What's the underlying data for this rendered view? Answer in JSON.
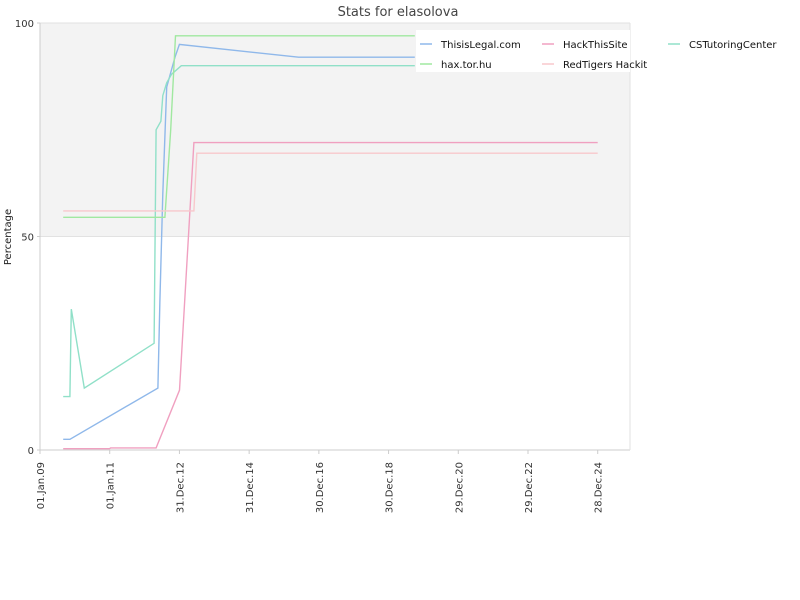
{
  "chart_data": {
    "type": "line",
    "title": "Stats for elasolova",
    "xlabel": "",
    "ylabel": "Percentage",
    "ylim": [
      0,
      100
    ],
    "xlim": [
      "2009-01-01",
      "2025-12-01"
    ],
    "yticks": [
      0,
      50,
      100
    ],
    "xticks": [
      {
        "label": "01.Jan.09",
        "date": "2009-01-01"
      },
      {
        "label": "01.Jan.11",
        "date": "2011-01-01"
      },
      {
        "label": "31.Dec.12",
        "date": "2012-12-31"
      },
      {
        "label": "31.Dec.14",
        "date": "2014-12-31"
      },
      {
        "label": "30.Dec.16",
        "date": "2016-12-30"
      },
      {
        "label": "30.Dec.18",
        "date": "2018-12-30"
      },
      {
        "label": "29.Dec.20",
        "date": "2020-12-29"
      },
      {
        "label": "29.Dec.22",
        "date": "2022-12-29"
      },
      {
        "label": "28.Dec.24",
        "date": "2024-12-28"
      }
    ],
    "shaded_band": [
      50,
      100
    ],
    "legend_position": "top-right",
    "series": [
      {
        "name": "ThisisLegal.com",
        "color": "#8fb8ea",
        "points": [
          [
            "2009-09-01",
            2.5
          ],
          [
            "2009-11-10",
            2.5
          ],
          [
            "2012-05-20",
            14.5
          ],
          [
            "2012-06-10",
            35
          ],
          [
            "2012-07-10",
            60
          ],
          [
            "2012-08-20",
            85
          ],
          [
            "2012-11-15",
            92
          ],
          [
            "2012-12-31",
            95
          ],
          [
            "2016-06-01",
            92
          ],
          [
            "2019-10-01",
            92
          ]
        ]
      },
      {
        "name": "HackThisSite",
        "color": "#f0a0c0",
        "points": [
          [
            "2009-09-01",
            0.3
          ],
          [
            "2010-12-31",
            0.3
          ],
          [
            "2011-01-10",
            0.5
          ],
          [
            "2012-05-01",
            0.5
          ],
          [
            "2013-01-01",
            14
          ],
          [
            "2013-06-01",
            72
          ],
          [
            "2024-12-28",
            72
          ]
        ]
      },
      {
        "name": "CSTutoringCenter",
        "color": "#90e0c8",
        "points": [
          [
            "2009-09-01",
            12.5
          ],
          [
            "2009-11-10",
            12.5
          ],
          [
            "2009-11-25",
            33
          ],
          [
            "2010-04-10",
            14.5
          ],
          [
            "2012-04-10",
            25
          ],
          [
            "2012-05-01",
            75
          ],
          [
            "2012-06-20",
            77
          ],
          [
            "2012-07-10",
            83
          ],
          [
            "2012-08-20",
            86
          ],
          [
            "2012-10-10",
            88
          ],
          [
            "2013-01-20",
            90
          ],
          [
            "2019-10-01",
            90
          ]
        ]
      },
      {
        "name": "hax.tor.hu",
        "color": "#a0e8a0",
        "points": [
          [
            "2009-09-01",
            54.5
          ],
          [
            "2012-08-01",
            54.5
          ],
          [
            "2012-10-01",
            75
          ],
          [
            "2012-11-20",
            97
          ],
          [
            "2019-10-01",
            97
          ]
        ]
      },
      {
        "name": "RedTigers Hackit",
        "color": "#f8c8cc",
        "points": [
          [
            "2009-09-01",
            56
          ],
          [
            "2013-06-01",
            56
          ],
          [
            "2013-07-01",
            69.5
          ],
          [
            "2024-12-28",
            69.5
          ]
        ]
      }
    ]
  }
}
